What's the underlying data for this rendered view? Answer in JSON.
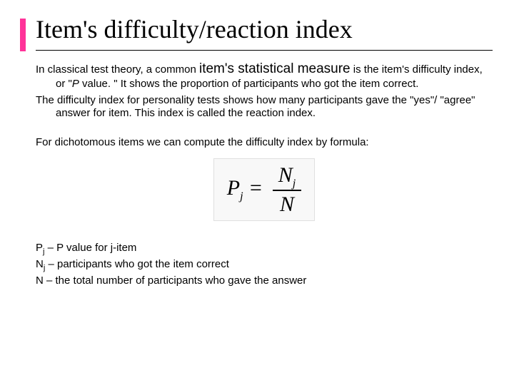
{
  "accent_color": "#ff3399",
  "title": "Item's difficulty/reaction index",
  "para1_a": "In classical test theory, a common ",
  "para1_b": "item's statistical measure",
  "para1_c": "  is the item's difficulty index, or \"",
  "para1_d": "P",
  "para1_e": " value. \"  It shows the proportion of participants who got the item correct.",
  "para2": "The difficulty index for personality tests shows how many participants gave the \"yes\"/ \"agree\" answer for item. This index is called the reaction index.",
  "para3": "For dichotomous items we can compute the difficulty index by formula:",
  "formula": {
    "lhs_var": "P",
    "lhs_sub": "j",
    "eq": " = ",
    "num_var": "N",
    "num_sub": "j",
    "den_var": "N"
  },
  "defs": {
    "d1_a": "P",
    "d1_sub": "j",
    "d1_b": " – P value for j-item",
    "d2_a": "N",
    "d2_sub": "j",
    "d2_b": " – participants who got the item correct",
    "d3": "N – the total number of participants who gave the answer"
  }
}
